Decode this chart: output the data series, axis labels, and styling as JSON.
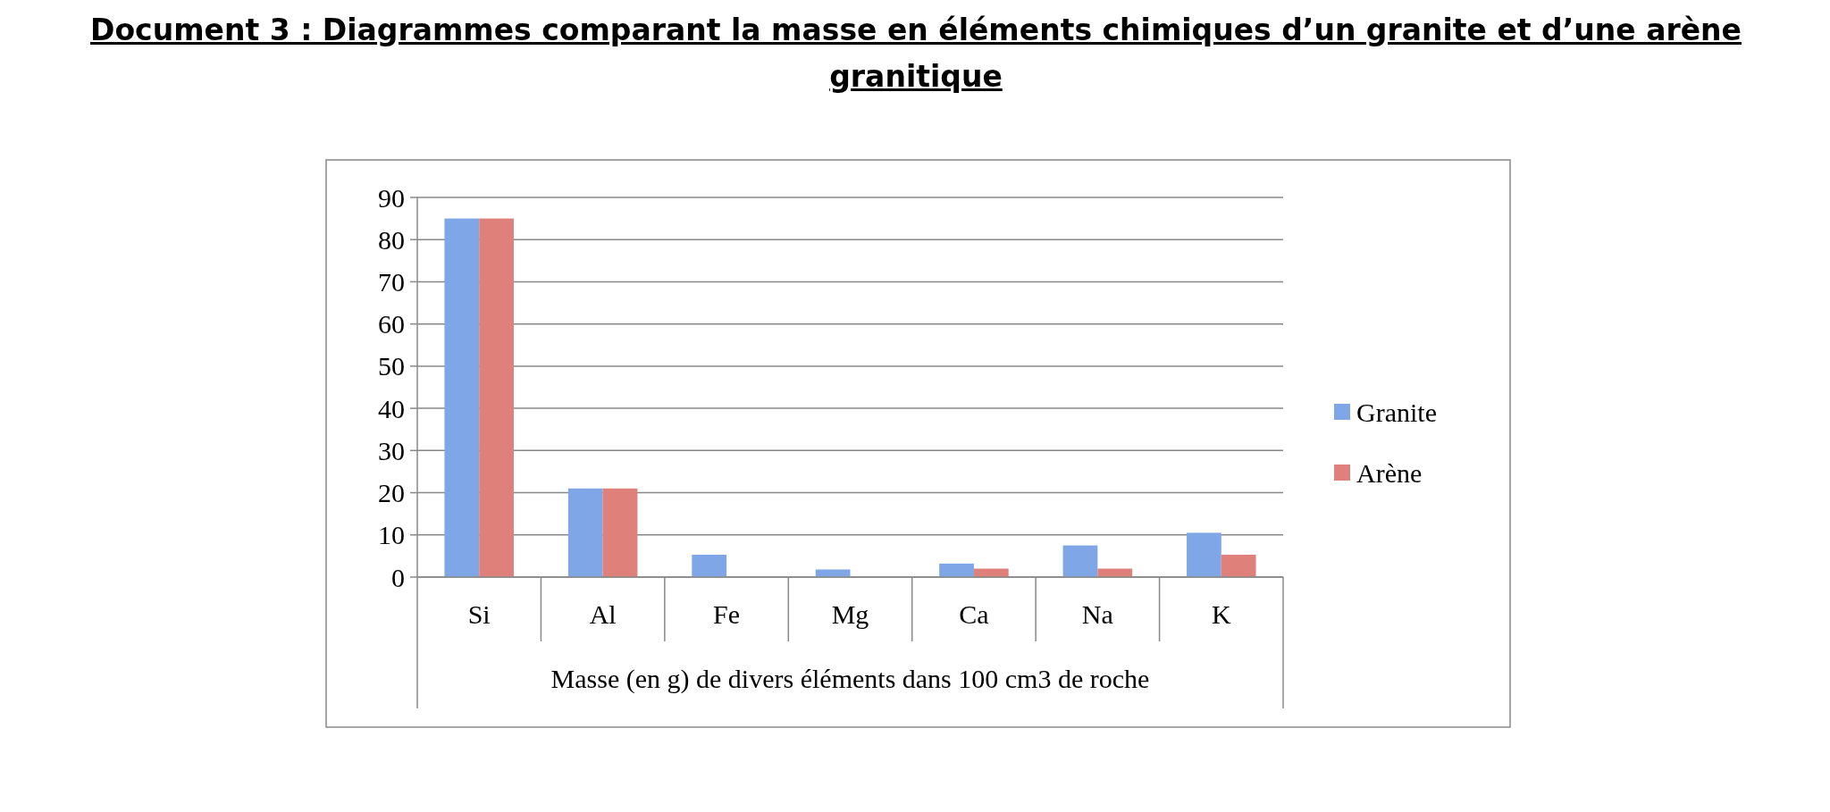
{
  "chart_data": {
    "type": "bar",
    "title": "Document 3 : Diagrammes comparant la masse en éléments chimiques d’un granite et d’une arène granitique",
    "xlabel": "Masse (en g) de divers éléments dans 100 cm3 de roche",
    "categories": [
      "Si",
      "Al",
      "Fe",
      "Mg",
      "Ca",
      "Na",
      "K"
    ],
    "series": [
      {
        "name": "Granite",
        "color": "#7fa7e8",
        "values": [
          85,
          21,
          5.3,
          1.8,
          3.2,
          7.5,
          10.5
        ]
      },
      {
        "name": "Arène",
        "color": "#e0807a",
        "values": [
          85,
          21,
          null,
          null,
          2,
          2,
          5.3
        ]
      }
    ],
    "ylim": [
      0,
      90
    ],
    "yticks": [
      0,
      10,
      20,
      30,
      40,
      50,
      60,
      70,
      80,
      90
    ],
    "grid": "y",
    "legend": "right"
  }
}
